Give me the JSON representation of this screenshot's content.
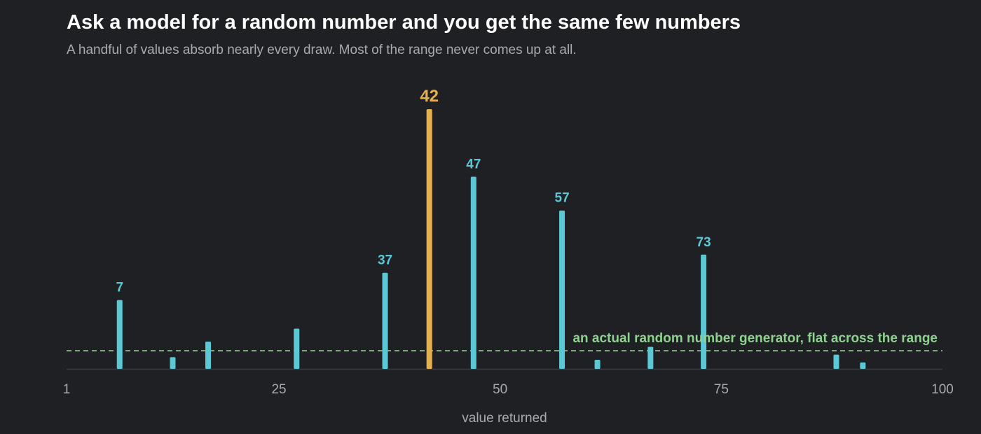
{
  "title": "Ask a model for a random number and you get the same few numbers",
  "subtitle": "A handful of values absorb nearly every draw. Most of the range never comes up at all.",
  "colors": {
    "background": "#1f2024",
    "bar": "#5bc8d6",
    "highlight": "#e8b04b",
    "reference": "#8fd18f",
    "axis": "#3a3c42",
    "tick_text": "#a8aaaf"
  },
  "chart_data": {
    "type": "bar",
    "xlabel": "value returned",
    "ylabel": "",
    "xlim": [
      1,
      100
    ],
    "ylim": [
      0,
      1
    ],
    "x_ticks": [
      1,
      25,
      50,
      75,
      100
    ],
    "grid": false,
    "series": [
      {
        "x": [
          7,
          13,
          17,
          27,
          37,
          42,
          47,
          57,
          61,
          67,
          73,
          88,
          91
        ],
        "values": [
          0.265,
          0.045,
          0.105,
          0.155,
          0.37,
          1.0,
          0.74,
          0.61,
          0.035,
          0.085,
          0.44,
          0.055,
          0.025
        ]
      }
    ],
    "highlight_x": 42,
    "data_labels": [
      "7",
      "37",
      "42",
      "47",
      "57",
      "73"
    ],
    "reference_line": {
      "value": 0.07,
      "label": "an actual random number generator, flat across the range"
    }
  }
}
